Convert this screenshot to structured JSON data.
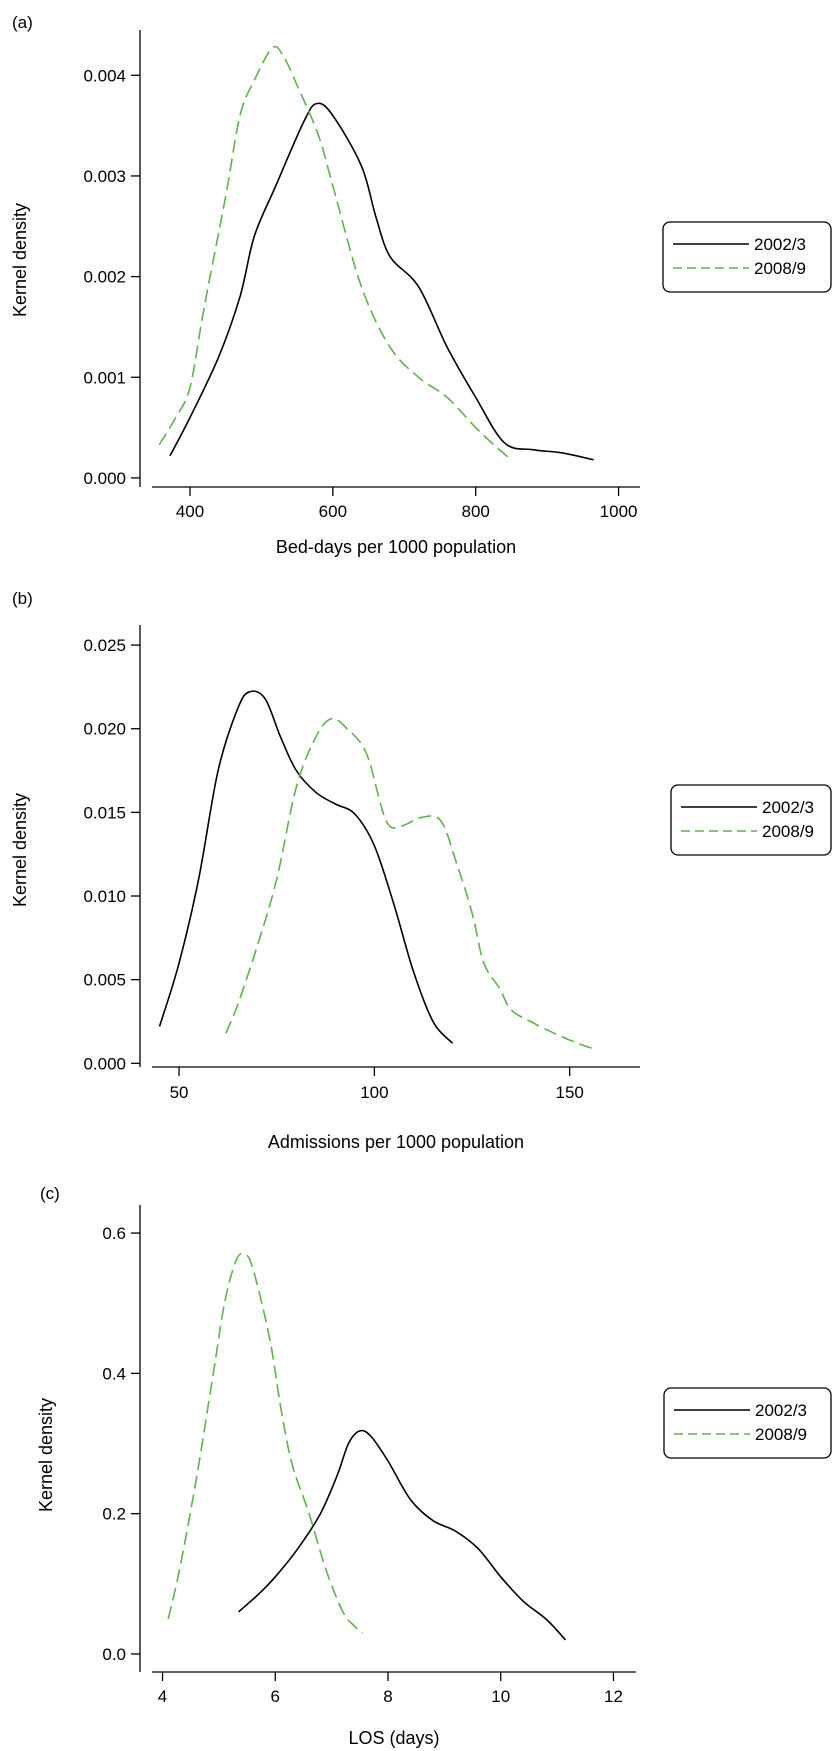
{
  "colors": {
    "series_2002": "#000000",
    "series_2008": "#5cb548"
  },
  "chart_data": [
    {
      "type": "line",
      "panel_label": "(a)",
      "xlabel": "Bed-days per 1000 population",
      "ylabel": "Kernel density",
      "xlim": [
        330,
        1030
      ],
      "ylim": [
        -0.00012,
        0.00445
      ],
      "xticks": [
        400,
        600,
        800,
        1000
      ],
      "xtick_labels": [
        "400",
        "600",
        "800",
        "1000"
      ],
      "yticks": [
        0.0,
        0.001,
        0.002,
        0.003,
        0.004
      ],
      "ytick_labels": [
        "0.000",
        "0.001",
        "0.002",
        "0.003",
        "0.004"
      ],
      "legend": {
        "placement": "right",
        "entries": [
          "2002/3",
          "2008/9"
        ]
      },
      "series": [
        {
          "name": "2002/3",
          "style": "solid",
          "points": [
            [
              372,
              0.00022
            ],
            [
              400,
              0.0006
            ],
            [
              440,
              0.0012
            ],
            [
              470,
              0.0018
            ],
            [
              490,
              0.0024
            ],
            [
              520,
              0.0029
            ],
            [
              560,
              0.00355
            ],
            [
              578,
              0.00372
            ],
            [
              600,
              0.0036
            ],
            [
              640,
              0.0031
            ],
            [
              660,
              0.0026
            ],
            [
              680,
              0.0022
            ],
            [
              720,
              0.0019
            ],
            [
              760,
              0.0013
            ],
            [
              800,
              0.0008
            ],
            [
              840,
              0.00035
            ],
            [
              880,
              0.00028
            ],
            [
              920,
              0.00025
            ],
            [
              965,
              0.00018
            ]
          ]
        },
        {
          "name": "2008/9",
          "style": "dashed",
          "points": [
            [
              357,
              0.00033
            ],
            [
              380,
              0.0006
            ],
            [
              400,
              0.0009
            ],
            [
              420,
              0.0017
            ],
            [
              450,
              0.0028
            ],
            [
              470,
              0.0036
            ],
            [
              490,
              0.00395
            ],
            [
              515,
              0.00427
            ],
            [
              530,
              0.0042
            ],
            [
              550,
              0.0039
            ],
            [
              580,
              0.0034
            ],
            [
              600,
              0.0029
            ],
            [
              640,
              0.0019
            ],
            [
              680,
              0.0013
            ],
            [
              720,
              0.001
            ],
            [
              760,
              0.0008
            ],
            [
              800,
              0.0005
            ],
            [
              830,
              0.0003
            ],
            [
              850,
              0.00018
            ]
          ]
        }
      ]
    },
    {
      "type": "line",
      "panel_label": "(b)",
      "xlabel": "Admissions per 1000 population",
      "ylabel": "Kernel density",
      "xlim": [
        40,
        168
      ],
      "ylim": [
        -0.0004,
        0.0262
      ],
      "xticks": [
        50,
        100,
        150
      ],
      "xtick_labels": [
        "50",
        "100",
        "150"
      ],
      "yticks": [
        0.0,
        0.005,
        0.01,
        0.015,
        0.02,
        0.025
      ],
      "ytick_labels": [
        "0.000",
        "0.005",
        "0.010",
        "0.015",
        "0.020",
        "0.025"
      ],
      "legend": {
        "placement": "right",
        "entries": [
          "2002/3",
          "2008/9"
        ]
      },
      "series": [
        {
          "name": "2002/3",
          "style": "solid",
          "points": [
            [
              45,
              0.0022
            ],
            [
              50,
              0.006
            ],
            [
              55,
              0.011
            ],
            [
              60,
              0.0175
            ],
            [
              65,
              0.0212
            ],
            [
              68,
              0.0222
            ],
            [
              72,
              0.0218
            ],
            [
              76,
              0.0195
            ],
            [
              80,
              0.0175
            ],
            [
              85,
              0.0162
            ],
            [
              90,
              0.0155
            ],
            [
              95,
              0.0149
            ],
            [
              100,
              0.013
            ],
            [
              105,
              0.0095
            ],
            [
              110,
              0.0055
            ],
            [
              115,
              0.0025
            ],
            [
              120,
              0.0012
            ]
          ]
        },
        {
          "name": "2008/9",
          "style": "dashed",
          "points": [
            [
              62,
              0.0018
            ],
            [
              65,
              0.0035
            ],
            [
              70,
              0.007
            ],
            [
              75,
              0.011
            ],
            [
              80,
              0.0165
            ],
            [
              85,
              0.0195
            ],
            [
              89,
              0.0206
            ],
            [
              93,
              0.02
            ],
            [
              98,
              0.0185
            ],
            [
              103,
              0.0145
            ],
            [
              107,
              0.0142
            ],
            [
              112,
              0.0147
            ],
            [
              117,
              0.0145
            ],
            [
              121,
              0.012
            ],
            [
              125,
              0.009
            ],
            [
              128,
              0.006
            ],
            [
              132,
              0.0045
            ],
            [
              135,
              0.0032
            ],
            [
              140,
              0.0025
            ],
            [
              146,
              0.0018
            ],
            [
              152,
              0.0012
            ],
            [
              157,
              0.0008
            ]
          ]
        }
      ]
    },
    {
      "type": "line",
      "panel_label": "(c)",
      "xlabel": "LOS (days)",
      "ylabel": "Kernel density",
      "xlim": [
        3.6,
        12.4
      ],
      "ylim": [
        -0.03,
        0.64
      ],
      "xticks": [
        4,
        6,
        8,
        10,
        12
      ],
      "xtick_labels": [
        "4",
        "6",
        "8",
        "10",
        "12"
      ],
      "yticks": [
        0.0,
        0.2,
        0.4,
        0.6
      ],
      "ytick_labels": [
        "0.0",
        "0.2",
        "0.4",
        "0.6"
      ],
      "legend": {
        "placement": "right",
        "entries": [
          "2002/3",
          "2008/9"
        ]
      },
      "series": [
        {
          "name": "2002/3",
          "style": "solid",
          "points": [
            [
              5.35,
              0.06
            ],
            [
              5.7,
              0.085
            ],
            [
              6.0,
              0.11
            ],
            [
              6.4,
              0.15
            ],
            [
              6.8,
              0.2
            ],
            [
              7.1,
              0.255
            ],
            [
              7.3,
              0.3
            ],
            [
              7.5,
              0.318
            ],
            [
              7.7,
              0.31
            ],
            [
              8.0,
              0.275
            ],
            [
              8.4,
              0.22
            ],
            [
              8.8,
              0.19
            ],
            [
              9.2,
              0.175
            ],
            [
              9.6,
              0.15
            ],
            [
              10.0,
              0.11
            ],
            [
              10.4,
              0.075
            ],
            [
              10.8,
              0.05
            ],
            [
              11.15,
              0.02
            ]
          ]
        },
        {
          "name": "2008/9",
          "style": "dashed",
          "points": [
            [
              4.1,
              0.05
            ],
            [
              4.3,
              0.12
            ],
            [
              4.6,
              0.25
            ],
            [
              4.9,
              0.4
            ],
            [
              5.1,
              0.5
            ],
            [
              5.3,
              0.56
            ],
            [
              5.45,
              0.57
            ],
            [
              5.6,
              0.55
            ],
            [
              5.9,
              0.45
            ],
            [
              6.1,
              0.35
            ],
            [
              6.3,
              0.27
            ],
            [
              6.6,
              0.2
            ],
            [
              6.9,
              0.12
            ],
            [
              7.2,
              0.06
            ],
            [
              7.4,
              0.04
            ],
            [
              7.55,
              0.03
            ]
          ]
        }
      ]
    }
  ]
}
